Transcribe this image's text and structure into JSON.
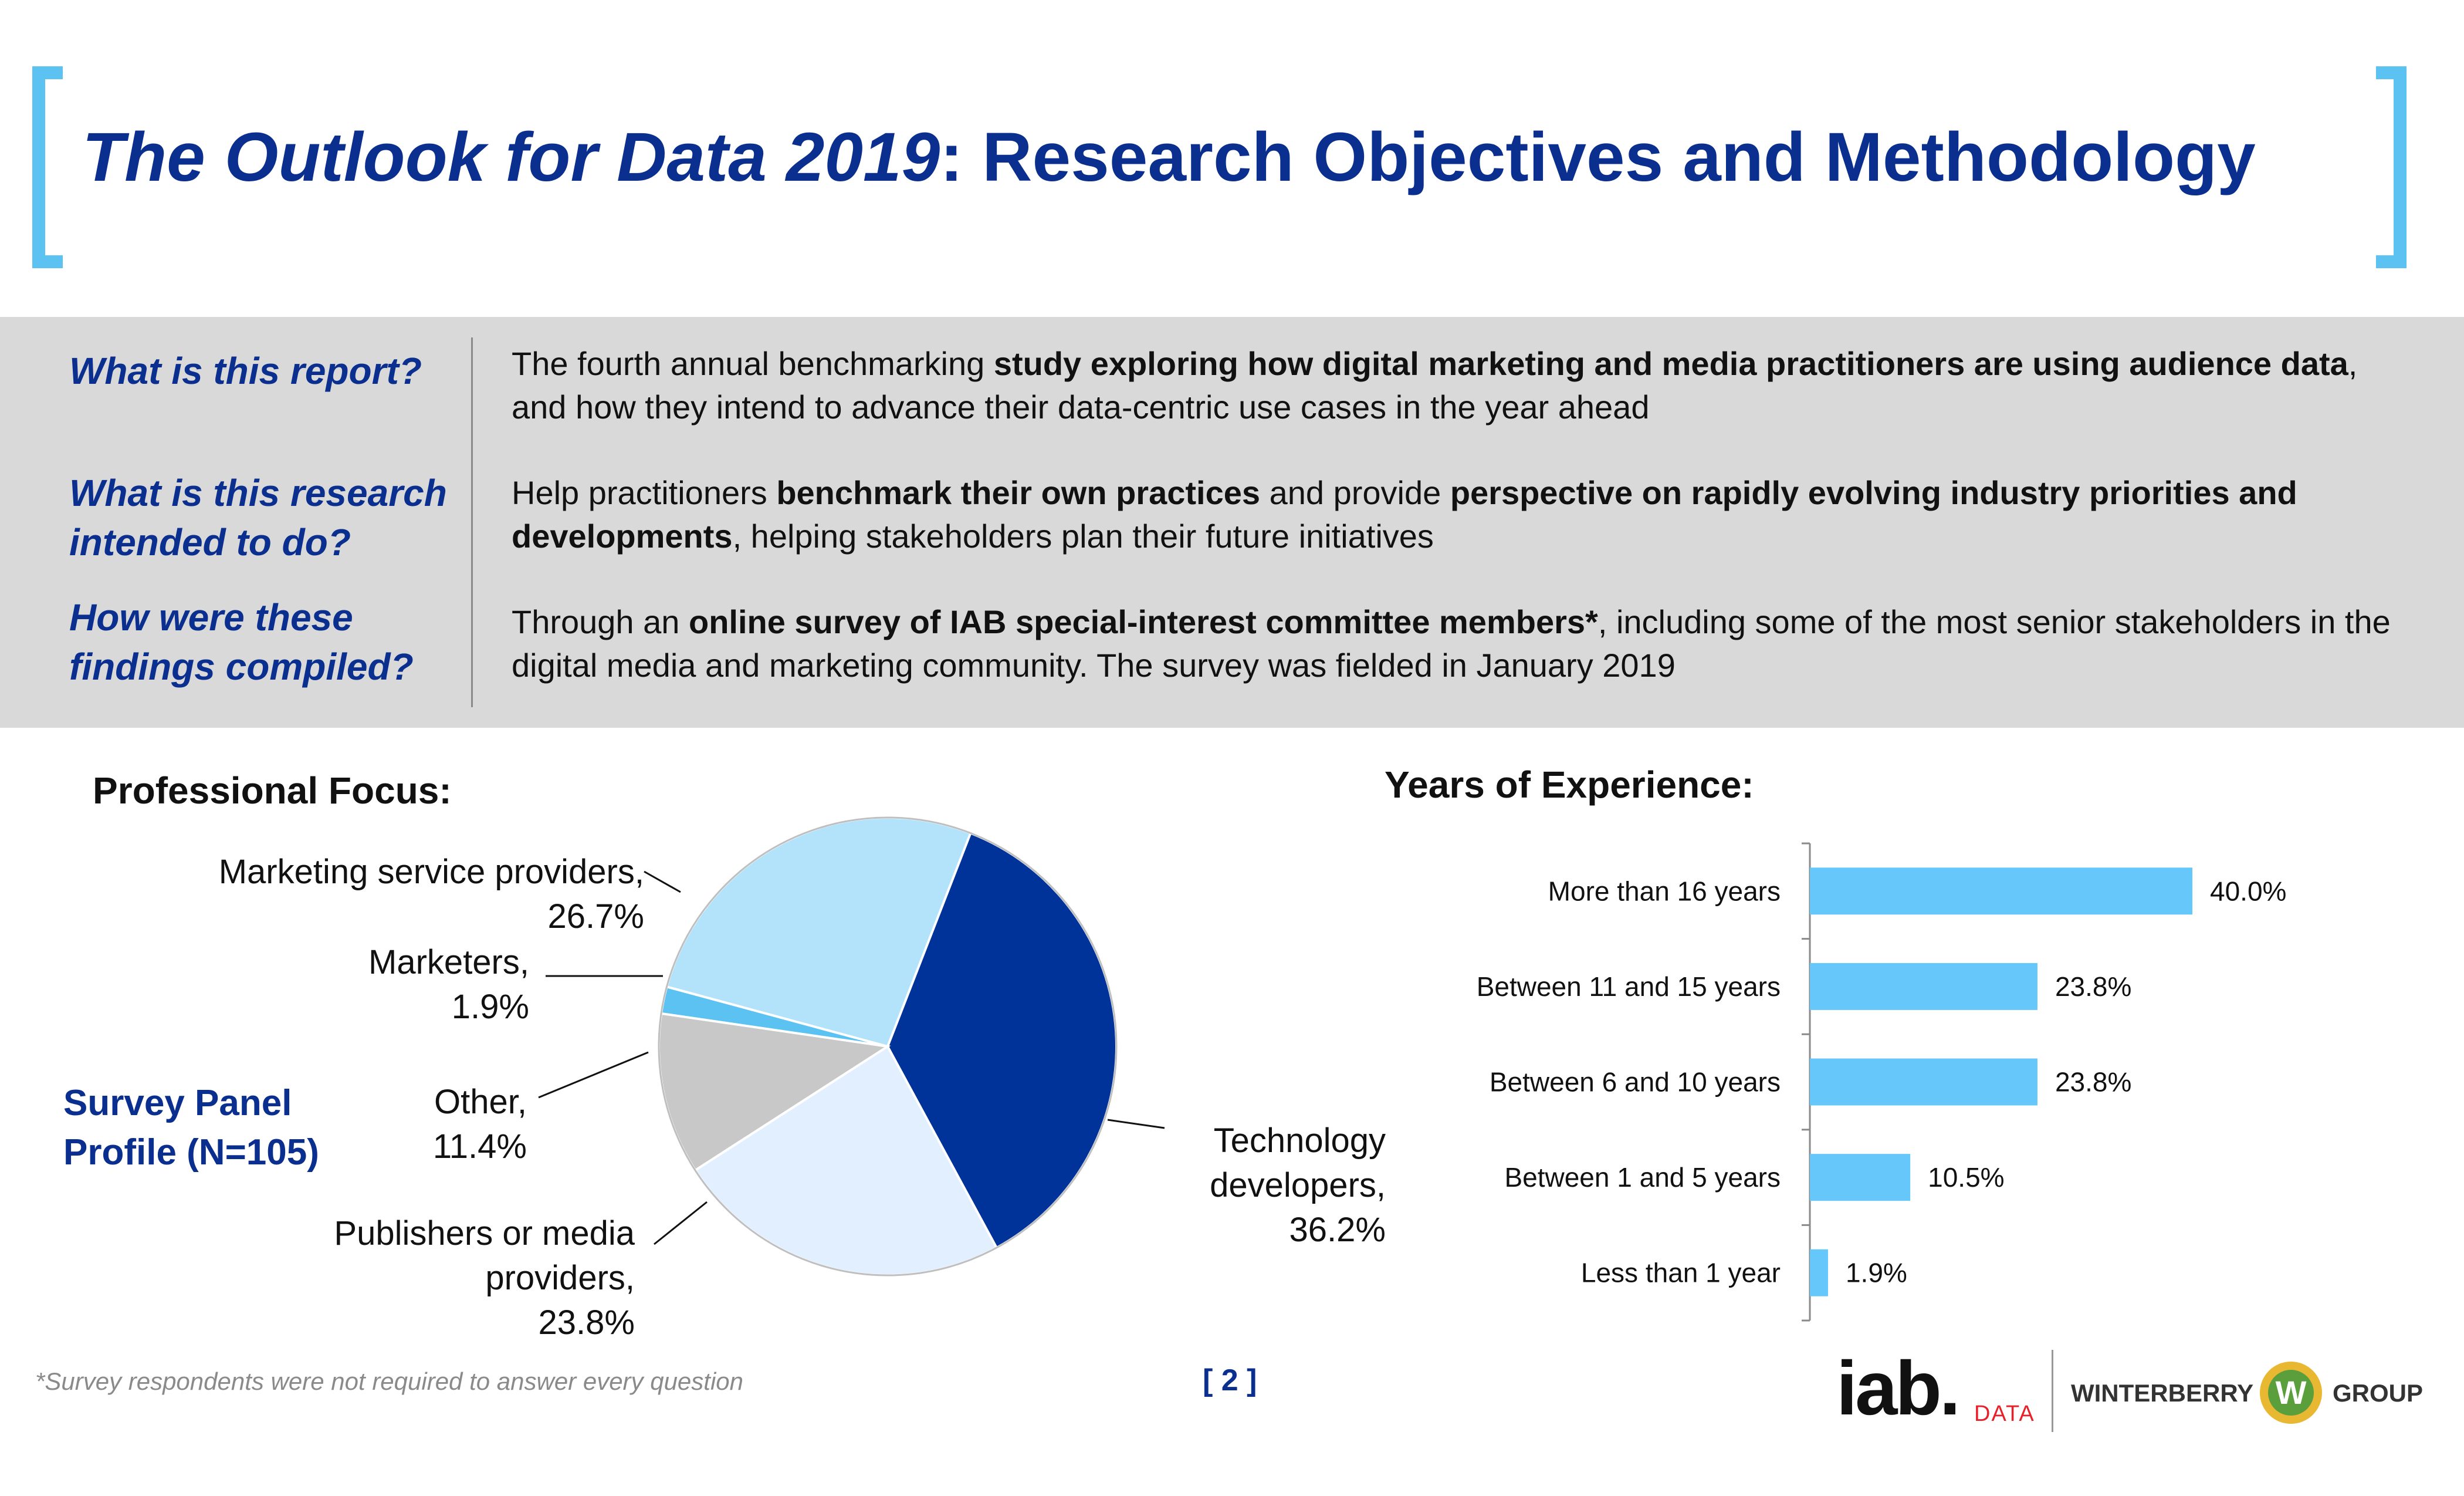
{
  "header": {
    "title_italic": "The Outlook for Data 2019",
    "title_rest": ": Research Objectives and Methodology"
  },
  "intro": [
    {
      "question": "What is this report?",
      "answer_parts": [
        {
          "text": "The fourth annual benchmarking ",
          "bold": false
        },
        {
          "text": "study exploring how digital marketing and media practitioners are using audience data",
          "bold": true
        },
        {
          "text": ", and how they intend to advance their data-centric use cases in the year ahead",
          "bold": false
        }
      ]
    },
    {
      "question": "What is this research intended to do?",
      "answer_parts": [
        {
          "text": "Help practitioners ",
          "bold": false
        },
        {
          "text": "benchmark their own practices",
          "bold": true
        },
        {
          "text": " and provide ",
          "bold": false
        },
        {
          "text": "perspective on rapidly evolving industry priorities and developments",
          "bold": true
        },
        {
          "text": ", helping stakeholders plan their future initiatives",
          "bold": false
        }
      ]
    },
    {
      "question": "How were these findings compiled?",
      "answer_parts": [
        {
          "text": "Through an ",
          "bold": false
        },
        {
          "text": "online survey of IAB special-interest committee members*",
          "bold": true
        },
        {
          "text": ", including some of the most senior stakeholders in the digital media and marketing community. The survey was fielded in January 2019",
          "bold": false
        }
      ]
    }
  ],
  "panel_profile": "Survey Panel Profile (N=105)",
  "chart_data": [
    {
      "type": "pie",
      "title": "Professional Focus:",
      "categories": [
        "Technology developers",
        "Publishers or media providers",
        "Other",
        "Marketers",
        "Marketing service providers"
      ],
      "values": [
        36.2,
        23.8,
        11.4,
        1.9,
        26.7
      ],
      "value_labels": [
        "36.2%",
        "23.8%",
        "11.4%",
        "1.9%",
        "26.7%"
      ],
      "colors": [
        "#00339a",
        "#e1efff",
        "#c8c8c8",
        "#5bc2f2",
        "#b2e3fb"
      ]
    },
    {
      "type": "bar",
      "orientation": "horizontal",
      "title": "Years of Experience:",
      "categories": [
        "More than 16 years",
        "Between 11 and 15 years",
        "Between 6 and 10 years",
        "Between 1 and 5 years",
        "Less than 1 year"
      ],
      "values": [
        40.0,
        23.8,
        23.8,
        10.5,
        1.9
      ],
      "value_labels": [
        "40.0%",
        "23.8%",
        "23.8%",
        "10.5%",
        "1.9%"
      ],
      "xlim": [
        0,
        40
      ],
      "color": "#66c8fa"
    }
  ],
  "footer": {
    "footnote": "*Survey respondents were not required to answer every question",
    "page_number": "[ 2 ]",
    "logo_iab": "iab.",
    "logo_data": "DATA",
    "logo_winterberry": "WINTERBERRY",
    "logo_w": "W",
    "logo_group": "GROUP"
  }
}
